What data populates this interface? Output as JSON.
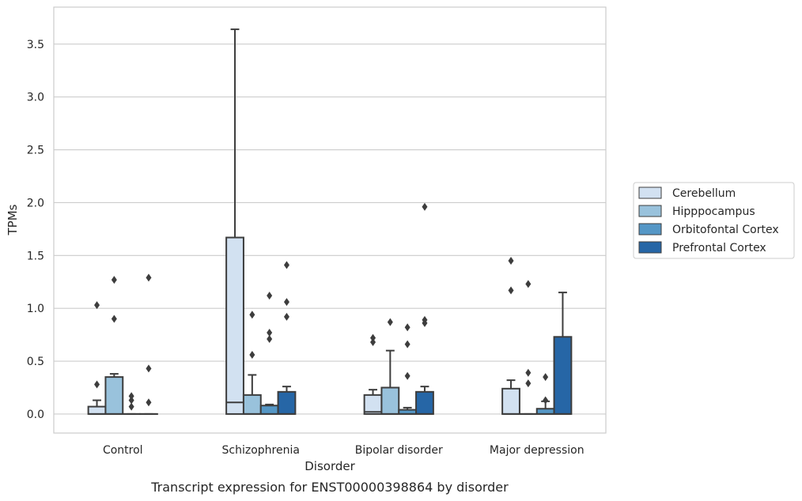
{
  "chart_data": {
    "type": "box",
    "xlabel": "Disorder",
    "ylabel": "TPMs",
    "caption": "Transcript expression for ENST00000398864 by disorder",
    "categories": [
      "Control",
      "Schizophrenia",
      "Bipolar disorder",
      "Major depression"
    ],
    "ylim": [
      -0.18,
      3.85
    ],
    "yticks": [
      0.0,
      0.5,
      1.0,
      1.5,
      2.0,
      2.5,
      3.0,
      3.5
    ],
    "ytick_labels": [
      "0.0",
      "0.5",
      "1.0",
      "1.5",
      "2.0",
      "2.5",
      "3.0",
      "3.5"
    ],
    "grid": "horizontal",
    "legend_position": "right",
    "series": [
      {
        "name": "Cerebellum",
        "color": "#d2e1f1",
        "boxes": [
          {
            "whisker_low": 0.0,
            "q1": 0.0,
            "median": 0.0,
            "q3": 0.07,
            "whisker_high": 0.13,
            "outliers": [
              0.28,
              1.03
            ]
          },
          {
            "whisker_low": 0.0,
            "q1": 0.0,
            "median": 0.11,
            "q3": 1.67,
            "whisker_high": 3.64,
            "outliers": []
          },
          {
            "whisker_low": 0.0,
            "q1": 0.0,
            "median": 0.02,
            "q3": 0.18,
            "whisker_high": 0.23,
            "outliers": [
              0.68,
              0.72
            ]
          },
          {
            "whisker_low": 0.0,
            "q1": 0.0,
            "median": 0.0,
            "q3": 0.24,
            "whisker_high": 0.32,
            "outliers": [
              1.17,
              1.45
            ]
          }
        ]
      },
      {
        "name": "Hipppocampus",
        "color": "#99c2dc",
        "boxes": [
          {
            "whisker_low": 0.0,
            "q1": 0.0,
            "median": 0.0,
            "q3": 0.35,
            "whisker_high": 0.38,
            "outliers": [
              0.9,
              1.27
            ]
          },
          {
            "whisker_low": 0.0,
            "q1": 0.0,
            "median": 0.0,
            "q3": 0.18,
            "whisker_high": 0.37,
            "outliers": [
              0.56,
              0.94
            ]
          },
          {
            "whisker_low": 0.0,
            "q1": 0.0,
            "median": 0.0,
            "q3": 0.25,
            "whisker_high": 0.6,
            "outliers": [
              0.87
            ]
          },
          {
            "whisker_low": 0.0,
            "q1": 0.0,
            "median": 0.0,
            "q3": 0.0,
            "whisker_high": 0.0,
            "outliers": [
              0.29,
              0.39,
              1.23
            ]
          }
        ]
      },
      {
        "name": "Orbitofontal Cortex",
        "color": "#5597c6",
        "boxes": [
          {
            "whisker_low": 0.0,
            "q1": 0.0,
            "median": 0.0,
            "q3": 0.0,
            "whisker_high": 0.0,
            "outliers": [
              0.07,
              0.13,
              0.17
            ]
          },
          {
            "whisker_low": 0.0,
            "q1": 0.0,
            "median": 0.0,
            "q3": 0.08,
            "whisker_high": 0.09,
            "outliers": [
              0.71,
              0.77,
              1.12
            ]
          },
          {
            "whisker_low": 0.0,
            "q1": 0.0,
            "median": 0.0,
            "q3": 0.04,
            "whisker_high": 0.06,
            "outliers": [
              0.36,
              0.66,
              0.82
            ]
          },
          {
            "whisker_low": 0.0,
            "q1": 0.0,
            "median": 0.0,
            "q3": 0.05,
            "whisker_high": 0.12,
            "outliers": [
              0.13,
              0.35
            ]
          }
        ]
      },
      {
        "name": "Prefrontal Cortex",
        "color": "#2666a6",
        "boxes": [
          {
            "whisker_low": 0.0,
            "q1": 0.0,
            "median": 0.0,
            "q3": 0.0,
            "whisker_high": 0.0,
            "outliers": [
              0.11,
              0.43,
              1.29
            ]
          },
          {
            "whisker_low": 0.0,
            "q1": 0.0,
            "median": 0.0,
            "q3": 0.21,
            "whisker_high": 0.26,
            "outliers": [
              0.92,
              1.06,
              1.41
            ]
          },
          {
            "whisker_low": 0.0,
            "q1": 0.0,
            "median": 0.0,
            "q3": 0.21,
            "whisker_high": 0.26,
            "outliers": [
              0.86,
              0.89,
              1.96
            ]
          },
          {
            "whisker_low": 0.0,
            "q1": 0.0,
            "median": 0.0,
            "q3": 0.73,
            "whisker_high": 1.15,
            "outliers": []
          }
        ]
      }
    ]
  }
}
